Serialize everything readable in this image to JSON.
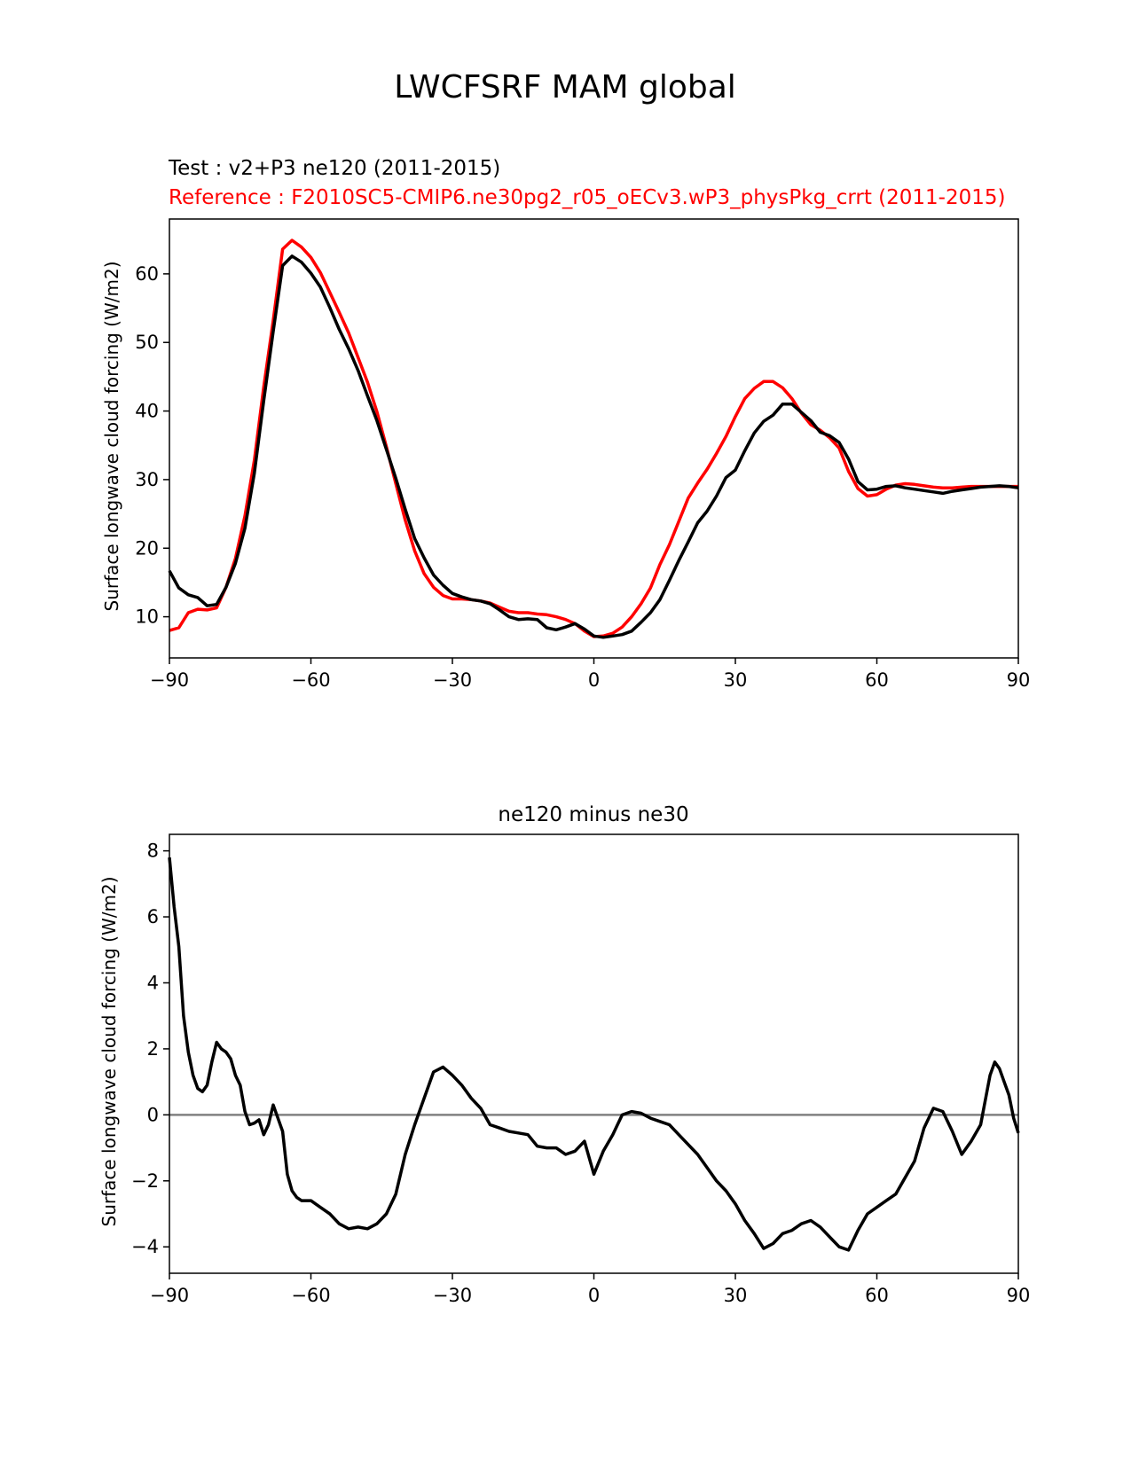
{
  "figure": {
    "suptitle": "LWCFSRF MAM global",
    "test_label": "Test : v2+P3 ne120 (2011-2015)",
    "reference_label": "Reference : F2010SC5-CMIP6.ne30pg2_r05_oECv3.wP3_physPkg_crrt (2011-2015)"
  },
  "colors": {
    "test": "#000000",
    "reference": "#ff0000",
    "zero_line": "#808080"
  },
  "chart_data": [
    {
      "type": "line",
      "title": "",
      "xlabel": "",
      "ylabel": "Surface longwave cloud forcing (W/m2)",
      "xlim": [
        -90,
        90
      ],
      "ylim": [
        4,
        68
      ],
      "xticks": [
        -90,
        -60,
        -30,
        0,
        30,
        60,
        90
      ],
      "yticks": [
        10,
        20,
        30,
        40,
        50,
        60
      ],
      "series": [
        {
          "name": "Test",
          "color": "#000000",
          "x": [
            -90,
            -88,
            -86,
            -84,
            -82,
            -80,
            -78,
            -76,
            -74,
            -72,
            -70,
            -68,
            -66,
            -64,
            -62,
            -60,
            -58,
            -56,
            -54,
            -52,
            -50,
            -48,
            -46,
            -44,
            -42,
            -40,
            -38,
            -36,
            -34,
            -32,
            -30,
            -28,
            -26,
            -24,
            -22,
            -20,
            -18,
            -16,
            -14,
            -12,
            -10,
            -8,
            -6,
            -4,
            -2,
            0,
            2,
            4,
            6,
            8,
            10,
            12,
            14,
            16,
            18,
            20,
            22,
            24,
            26,
            28,
            30,
            32,
            34,
            36,
            38,
            40,
            42,
            44,
            46,
            48,
            50,
            52,
            54,
            56,
            58,
            60,
            62,
            64,
            66,
            68,
            70,
            72,
            74,
            76,
            78,
            80,
            82,
            84,
            86,
            88,
            90
          ],
          "y": [
            16.7,
            14.2,
            13.2,
            12.8,
            11.6,
            11.8,
            14.3,
            17.8,
            22.9,
            30.9,
            41.5,
            51.6,
            61.2,
            62.6,
            61.7,
            60.1,
            58.1,
            55.1,
            51.9,
            49.1,
            45.9,
            42.2,
            38.6,
            34.4,
            30.2,
            25.7,
            21.4,
            18.6,
            16.1,
            14.6,
            13.4,
            12.9,
            12.5,
            12.3,
            11.9,
            11.0,
            10.0,
            9.6,
            9.7,
            9.6,
            8.4,
            8.1,
            8.5,
            9.0,
            8.2,
            7.2,
            7.0,
            7.2,
            7.4,
            7.9,
            9.2,
            10.6,
            12.5,
            15.3,
            18.2,
            20.9,
            23.7,
            25.4,
            27.6,
            30.3,
            31.4,
            34.2,
            36.8,
            38.5,
            39.4,
            41.0,
            41.0,
            39.8,
            38.6,
            36.9,
            36.4,
            35.4,
            33.0,
            29.7,
            28.5,
            28.6,
            29.0,
            29.1,
            28.8,
            28.6,
            28.4,
            28.2,
            28.0,
            28.3,
            28.5,
            28.7,
            28.9,
            29.0,
            29.1,
            29.0,
            28.8
          ]
        },
        {
          "name": "Reference",
          "color": "#ff0000",
          "x": [
            -90,
            -88,
            -86,
            -84,
            -82,
            -80,
            -78,
            -76,
            -74,
            -72,
            -70,
            -68,
            -66,
            -64,
            -62,
            -60,
            -58,
            -56,
            -54,
            -52,
            -50,
            -48,
            -46,
            -44,
            -42,
            -40,
            -38,
            -36,
            -34,
            -32,
            -30,
            -28,
            -26,
            -24,
            -22,
            -20,
            -18,
            -16,
            -14,
            -12,
            -10,
            -8,
            -6,
            -4,
            -2,
            0,
            2,
            4,
            6,
            8,
            10,
            12,
            14,
            16,
            18,
            20,
            22,
            24,
            26,
            28,
            30,
            32,
            34,
            36,
            38,
            40,
            42,
            44,
            46,
            48,
            50,
            52,
            54,
            56,
            58,
            60,
            62,
            64,
            66,
            68,
            70,
            72,
            74,
            76,
            78,
            80,
            82,
            84,
            86,
            88,
            90
          ],
          "y": [
            8.0,
            8.4,
            10.6,
            11.1,
            11.0,
            11.3,
            14.3,
            18.5,
            24.7,
            32.8,
            43.5,
            53.2,
            63.6,
            64.9,
            63.9,
            62.4,
            60.2,
            57.3,
            54.4,
            51.4,
            47.8,
            44.2,
            39.9,
            34.8,
            29.4,
            24.1,
            19.6,
            16.3,
            14.3,
            13.1,
            12.6,
            12.6,
            12.5,
            12.3,
            12.0,
            11.4,
            10.8,
            10.6,
            10.6,
            10.4,
            10.3,
            10.0,
            9.6,
            9.0,
            7.9,
            7.1,
            7.2,
            7.6,
            8.5,
            10.0,
            11.9,
            14.2,
            17.6,
            20.5,
            23.9,
            27.3,
            29.5,
            31.5,
            33.8,
            36.3,
            39.2,
            41.8,
            43.3,
            44.3,
            44.3,
            43.4,
            41.8,
            39.7,
            38.0,
            37.2,
            36.1,
            34.6,
            31.2,
            28.7,
            27.6,
            27.8,
            28.6,
            29.2,
            29.4,
            29.3,
            29.1,
            28.9,
            28.8,
            28.8,
            28.9,
            29.0,
            29.0,
            29.0,
            29.0,
            29.0,
            29.0
          ]
        }
      ]
    },
    {
      "type": "line",
      "title": "ne120 minus ne30",
      "xlabel": "",
      "ylabel": "Surface longwave cloud forcing (W/m2)",
      "xlim": [
        -90,
        90
      ],
      "ylim": [
        -4.8,
        8.5
      ],
      "xticks": [
        -90,
        -60,
        -30,
        0,
        30,
        60,
        90
      ],
      "yticks": [
        -4,
        -2,
        0,
        2,
        4,
        6,
        8
      ],
      "hline": 0,
      "series": [
        {
          "name": "ne120 minus ne30",
          "color": "#000000",
          "x": [
            -90,
            -89,
            -88,
            -87,
            -86,
            -85,
            -84,
            -83,
            -82,
            -81,
            -80,
            -79,
            -78,
            -77,
            -76,
            -75,
            -74,
            -73,
            -72,
            -71,
            -70,
            -69,
            -68,
            -67,
            -66,
            -65,
            -64,
            -63,
            -62,
            -61,
            -60,
            -58,
            -56,
            -54,
            -52,
            -50,
            -48,
            -46,
            -44,
            -42,
            -40,
            -38,
            -36,
            -34,
            -32,
            -30,
            -28,
            -26,
            -24,
            -22,
            -20,
            -18,
            -16,
            -14,
            -12,
            -10,
            -8,
            -6,
            -4,
            -2,
            0,
            2,
            4,
            6,
            8,
            10,
            12,
            14,
            16,
            18,
            20,
            22,
            24,
            26,
            28,
            30,
            32,
            34,
            36,
            38,
            40,
            42,
            44,
            46,
            48,
            50,
            52,
            54,
            56,
            58,
            60,
            62,
            64,
            66,
            68,
            70,
            72,
            74,
            76,
            78,
            80,
            82,
            84,
            85,
            86,
            87,
            88,
            89,
            90
          ],
          "y": [
            7.8,
            6.3,
            5.1,
            3.0,
            1.9,
            1.2,
            0.8,
            0.7,
            0.9,
            1.6,
            2.2,
            2.0,
            1.9,
            1.7,
            1.2,
            0.9,
            0.1,
            -0.3,
            -0.25,
            -0.15,
            -0.6,
            -0.3,
            0.3,
            -0.1,
            -0.5,
            -1.8,
            -2.3,
            -2.5,
            -2.6,
            -2.6,
            -2.6,
            -2.8,
            -3.0,
            -3.3,
            -3.45,
            -3.4,
            -3.45,
            -3.3,
            -3.0,
            -2.4,
            -1.2,
            -0.3,
            0.5,
            1.3,
            1.45,
            1.2,
            0.9,
            0.5,
            0.2,
            -0.3,
            -0.4,
            -0.5,
            -0.55,
            -0.6,
            -0.95,
            -1.0,
            -1.0,
            -1.2,
            -1.1,
            -0.8,
            -1.8,
            -1.1,
            -0.6,
            0.0,
            0.1,
            0.05,
            -0.1,
            -0.2,
            -0.3,
            -0.6,
            -0.9,
            -1.2,
            -1.6,
            -2.0,
            -2.3,
            -2.7,
            -3.2,
            -3.6,
            -4.05,
            -3.9,
            -3.6,
            -3.5,
            -3.3,
            -3.2,
            -3.4,
            -3.7,
            -4.0,
            -4.1,
            -3.5,
            -3.0,
            -2.8,
            -2.6,
            -2.4,
            -1.9,
            -1.4,
            -0.4,
            0.2,
            0.1,
            -0.5,
            -1.2,
            -0.8,
            -0.3,
            1.2,
            1.6,
            1.4,
            1.0,
            0.6,
            -0.1,
            -0.55
          ]
        }
      ]
    }
  ]
}
